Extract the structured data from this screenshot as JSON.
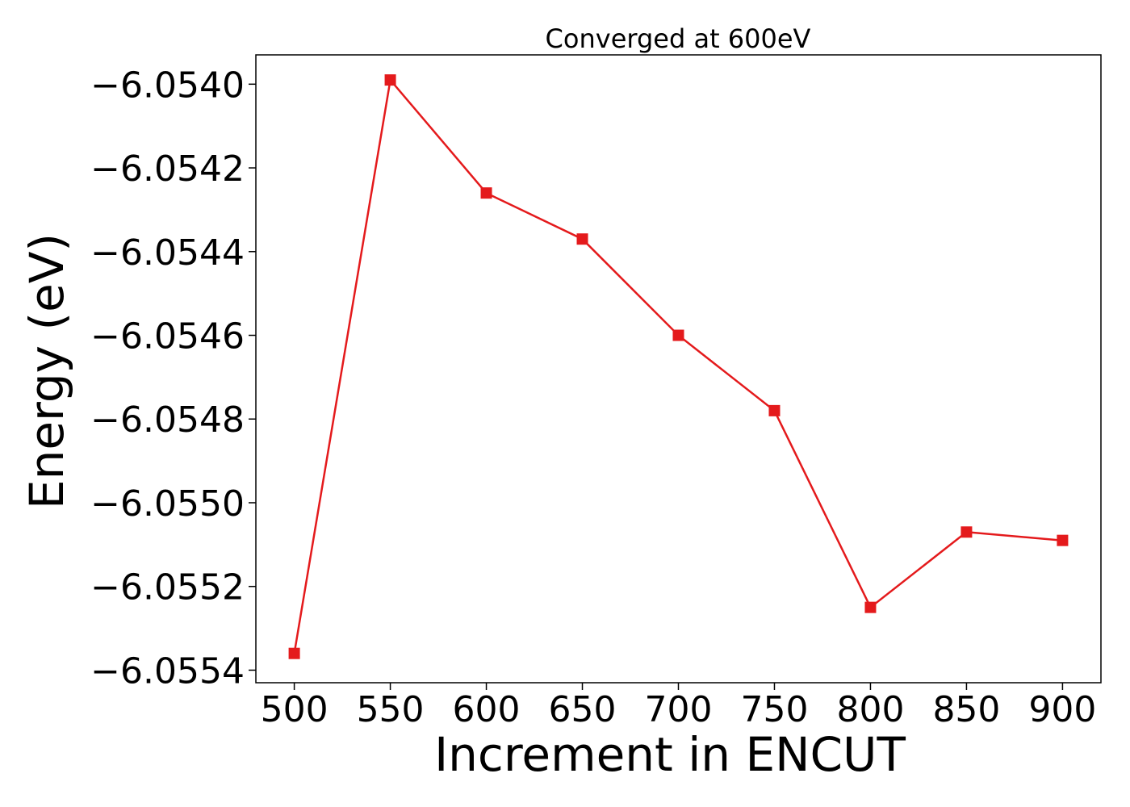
{
  "chart_data": {
    "type": "line",
    "title": "Converged at 600eV",
    "xlabel": "Increment in ENCUT",
    "ylabel": "Energy (eV)",
    "x": [
      500,
      550,
      600,
      650,
      700,
      750,
      800,
      850,
      900
    ],
    "x_tick_labels": [
      "500",
      "550",
      "600",
      "650",
      "700",
      "750",
      "800",
      "850",
      "900"
    ],
    "y_ticks": [
      -6.054,
      -6.0542,
      -6.0544,
      -6.0546,
      -6.0548,
      -6.055,
      -6.0552,
      -6.0554
    ],
    "y_tick_labels": [
      "−6.0540",
      "−6.0542",
      "−6.0544",
      "−6.0546",
      "−6.0548",
      "−6.0550",
      "−6.0552",
      "−6.0554"
    ],
    "xlim": [
      480,
      920
    ],
    "ylim": [
      -6.05543,
      -6.05393
    ],
    "series": [
      {
        "name": "",
        "color": "#e41a1c",
        "marker": "square",
        "values": [
          -6.05536,
          -6.05399,
          -6.05426,
          -6.05437,
          -6.0546,
          -6.05478,
          -6.05525,
          -6.05507,
          -6.05509
        ]
      }
    ],
    "grid": false,
    "legend": "none"
  }
}
